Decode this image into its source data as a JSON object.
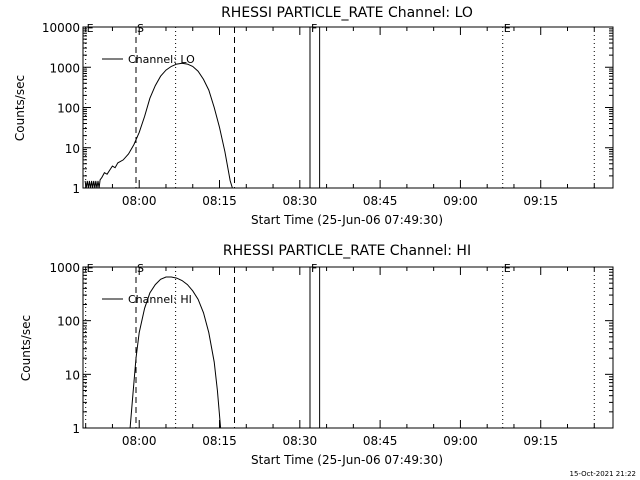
{
  "timestamp": "15-Oct-2021 21:22",
  "chart_data": [
    {
      "type": "line",
      "title": "RHESSI PARTICLE_RATE Channel: LO",
      "xlabel": "Start Time (25-Jun-06 07:49:30)",
      "ylabel": "Counts/sec",
      "y_scale": "log",
      "ylim": [
        1,
        10000
      ],
      "xlim": [
        "07:49:30",
        "09:28:30"
      ],
      "yticks": [
        {
          "v": 1,
          "label": "1"
        },
        {
          "v": 10,
          "label": "10"
        },
        {
          "v": 100,
          "label": "100"
        },
        {
          "v": 1000,
          "label": "1000"
        },
        {
          "v": 10000,
          "label": "10000"
        }
      ],
      "xticks": [
        {
          "t": "08:00",
          "label": "08:00"
        },
        {
          "t": "08:15",
          "label": "08:15"
        },
        {
          "t": "08:30",
          "label": "08:30"
        },
        {
          "t": "08:45",
          "label": "08:45"
        },
        {
          "t": "09:00",
          "label": "09:00"
        },
        {
          "t": "09:15",
          "label": "09:15"
        }
      ],
      "legend": {
        "label": "Channel: LO",
        "placement": "top-left"
      },
      "grid": false,
      "series": [
        {
          "name": "Channel: LO",
          "points": [
            [
              "07:49:54",
              1.5
            ],
            [
              "07:50:06",
              1
            ],
            [
              "07:50:18",
              1.5
            ],
            [
              "07:50:30",
              1
            ],
            [
              "07:50:42",
              1.5
            ],
            [
              "07:50:54",
              1
            ],
            [
              "07:51:06",
              1.5
            ],
            [
              "07:51:18",
              1
            ],
            [
              "07:51:30",
              1.5
            ],
            [
              "07:51:42",
              1
            ],
            [
              "07:51:54",
              1.5
            ],
            [
              "07:52:06",
              1
            ],
            [
              "07:52:18",
              1.5
            ],
            [
              "07:52:30",
              1
            ],
            [
              "07:52:42",
              1.6
            ],
            [
              "07:53:00",
              1.8
            ],
            [
              "07:53:30",
              2.4
            ],
            [
              "07:54:00",
              2.2
            ],
            [
              "07:54:30",
              2.8
            ],
            [
              "07:55:00",
              3.5
            ],
            [
              "07:55:30",
              3.2
            ],
            [
              "07:56:00",
              4.2
            ],
            [
              "07:57:00",
              5
            ],
            [
              "07:58:00",
              7
            ],
            [
              "07:59:00",
              12
            ],
            [
              "08:00:00",
              24
            ],
            [
              "08:01:00",
              60
            ],
            [
              "08:02:00",
              170
            ],
            [
              "08:03:00",
              350
            ],
            [
              "08:04:00",
              600
            ],
            [
              "08:05:00",
              850
            ],
            [
              "08:06:00",
              1050
            ],
            [
              "08:07:00",
              1200
            ],
            [
              "08:08:00",
              1250
            ],
            [
              "08:09:00",
              1200
            ],
            [
              "08:10:00",
              1050
            ],
            [
              "08:11:00",
              800
            ],
            [
              "08:12:00",
              500
            ],
            [
              "08:13:00",
              270
            ],
            [
              "08:14:00",
              100
            ],
            [
              "08:15:00",
              32
            ],
            [
              "08:16:00",
              8
            ],
            [
              "08:17:00",
              1.5
            ],
            [
              "08:17:24",
              1
            ]
          ]
        }
      ],
      "markers": [
        {
          "t": "07:50:00",
          "style": "dotted",
          "label": "E"
        },
        {
          "t": "07:59:24",
          "style": "dashed",
          "label": "S"
        },
        {
          "t": "08:06:48",
          "style": "dotted",
          "label": ""
        },
        {
          "t": "08:17:48",
          "style": "dashed",
          "label": ""
        },
        {
          "t": "08:31:54",
          "style": "solid",
          "label": "F"
        },
        {
          "t": "08:33:42",
          "style": "solid",
          "label": ""
        },
        {
          "t": "09:07:54",
          "style": "dotted",
          "label": "E"
        },
        {
          "t": "09:25:00",
          "style": "dotted",
          "label": ""
        }
      ]
    },
    {
      "type": "line",
      "title": "RHESSI PARTICLE_RATE Channel: HI",
      "xlabel": "Start Time (25-Jun-06 07:49:30)",
      "ylabel": "Counts/sec",
      "y_scale": "log",
      "ylim": [
        1,
        1000
      ],
      "xlim": [
        "07:49:30",
        "09:28:30"
      ],
      "yticks": [
        {
          "v": 1,
          "label": "1"
        },
        {
          "v": 10,
          "label": "10"
        },
        {
          "v": 100,
          "label": "100"
        },
        {
          "v": 1000,
          "label": "1000"
        }
      ],
      "xticks": [
        {
          "t": "08:00",
          "label": "08:00"
        },
        {
          "t": "08:15",
          "label": "08:15"
        },
        {
          "t": "08:30",
          "label": "08:30"
        },
        {
          "t": "08:45",
          "label": "08:45"
        },
        {
          "t": "09:00",
          "label": "09:00"
        },
        {
          "t": "09:15",
          "label": "09:15"
        }
      ],
      "legend": {
        "label": "Channel: HI",
        "placement": "top-left"
      },
      "grid": false,
      "series": [
        {
          "name": "Channel: HI",
          "points": [
            [
              "07:58:18",
              1
            ],
            [
              "07:58:48",
              4
            ],
            [
              "07:59:24",
              20
            ],
            [
              "08:00:00",
              60
            ],
            [
              "08:01:00",
              170
            ],
            [
              "08:02:00",
              330
            ],
            [
              "08:03:00",
              470
            ],
            [
              "08:04:00",
              590
            ],
            [
              "08:05:00",
              650
            ],
            [
              "08:06:00",
              650
            ],
            [
              "08:07:00",
              620
            ],
            [
              "08:08:00",
              560
            ],
            [
              "08:09:00",
              470
            ],
            [
              "08:10:00",
              360
            ],
            [
              "08:11:00",
              250
            ],
            [
              "08:12:00",
              140
            ],
            [
              "08:13:00",
              60
            ],
            [
              "08:14:00",
              17
            ],
            [
              "08:14:36",
              5
            ],
            [
              "08:15:12",
              1
            ]
          ]
        }
      ],
      "markers": [
        {
          "t": "07:50:00",
          "style": "dotted",
          "label": "E"
        },
        {
          "t": "07:59:24",
          "style": "dashed",
          "label": "S"
        },
        {
          "t": "08:06:48",
          "style": "dotted",
          "label": ""
        },
        {
          "t": "08:17:48",
          "style": "dashed",
          "label": ""
        },
        {
          "t": "08:31:54",
          "style": "solid",
          "label": "F"
        },
        {
          "t": "08:33:42",
          "style": "solid",
          "label": ""
        },
        {
          "t": "09:07:54",
          "style": "dotted",
          "label": "E"
        },
        {
          "t": "09:25:00",
          "style": "dotted",
          "label": ""
        }
      ]
    }
  ]
}
